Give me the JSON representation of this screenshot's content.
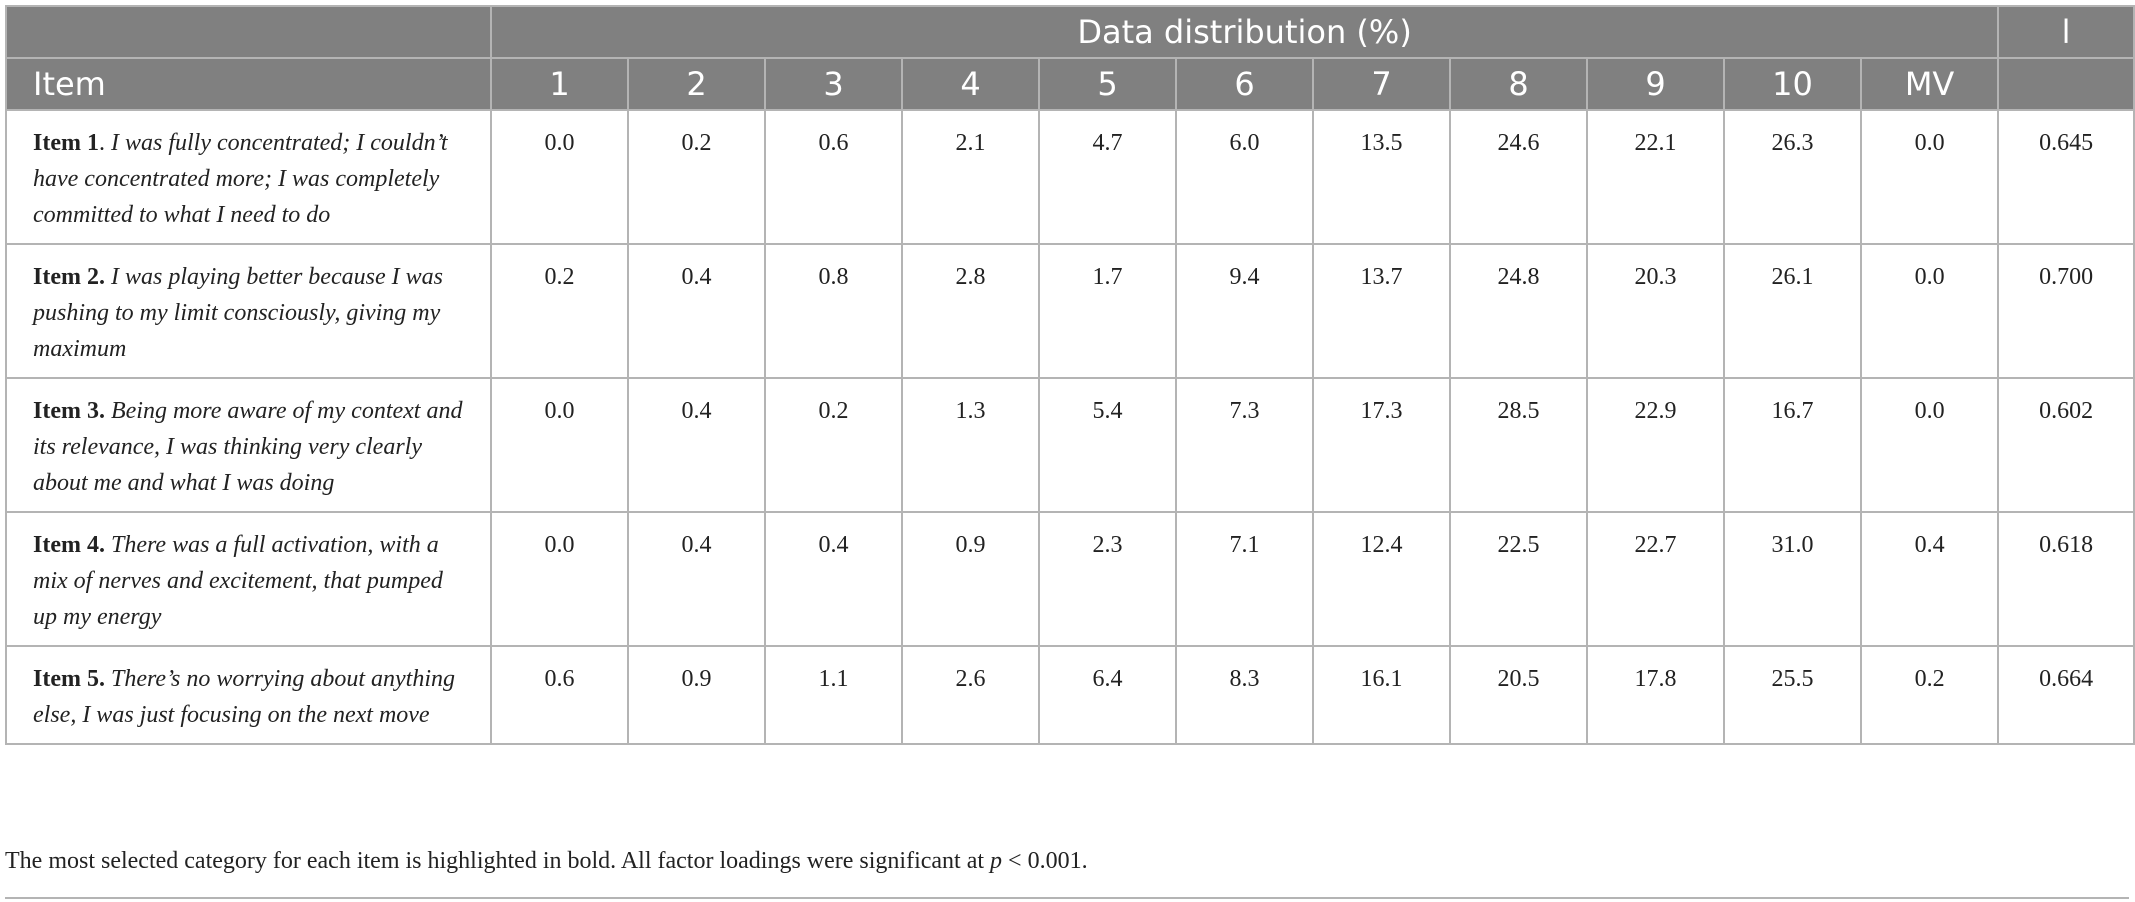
{
  "table": {
    "group_header": "Data distribution (%)",
    "loading_header": "l",
    "item_header": "Item",
    "category_headers": [
      "1",
      "2",
      "3",
      "4",
      "5",
      "6",
      "7",
      "8",
      "9",
      "10",
      "MV"
    ],
    "rows": [
      {
        "label": "Item 1",
        "sep": ". ",
        "text": "I was fully concentrated; I couldn’t have concentrated more; I was completely committed to what I need to do",
        "values": [
          "0.0",
          "0.2",
          "0.6",
          "2.1",
          "4.7",
          "6.0",
          "13.5",
          "24.6",
          "22.1",
          "26.3",
          "0.0"
        ],
        "bold_index": 9,
        "loading": "0.645"
      },
      {
        "label": "Item 2.",
        "sep": " ",
        "text": "I was playing better because I was pushing to my limit consciously, giving my maximum",
        "values": [
          "0.2",
          "0.4",
          "0.8",
          "2.8",
          "1.7",
          "9.4",
          "13.7",
          "24.8",
          "20.3",
          "26.1",
          "0.0"
        ],
        "bold_index": 9,
        "loading": "0.700"
      },
      {
        "label": "Item 3.",
        "sep": " ",
        "text": "Being more aware of my context and its relevance, I was thinking very clearly about me and what I was doing",
        "values": [
          "0.0",
          "0.4",
          "0.2",
          "1.3",
          "5.4",
          "7.3",
          "17.3",
          "28.5",
          "22.9",
          "16.7",
          "0.0"
        ],
        "bold_index": 7,
        "loading": "0.602"
      },
      {
        "label": "Item 4.",
        "sep": " ",
        "text": "There was a full activation, with a mix of nerves and excitement, that pumped up my energy",
        "values": [
          "0.0",
          "0.4",
          "0.4",
          "0.9",
          "2.3",
          "7.1",
          "12.4",
          "22.5",
          "22.7",
          "31.0",
          "0.4"
        ],
        "bold_index": 9,
        "loading": "0.618"
      },
      {
        "label": "Item 5.",
        "sep": " ",
        "text": "There’s no worrying about anything else, I was just focusing on the next move",
        "values": [
          "0.6",
          "0.9",
          "1.1",
          "2.6",
          "6.4",
          "8.3",
          "16.1",
          "20.5",
          "17.8",
          "25.5",
          "0.2"
        ],
        "bold_index": 9,
        "loading": "0.664"
      }
    ]
  },
  "note": {
    "text_before": "The most selected category for each item is highlighted in bold. All factor loadings were significant at ",
    "p_symbol": "p",
    "text_after": " < 0.001."
  }
}
